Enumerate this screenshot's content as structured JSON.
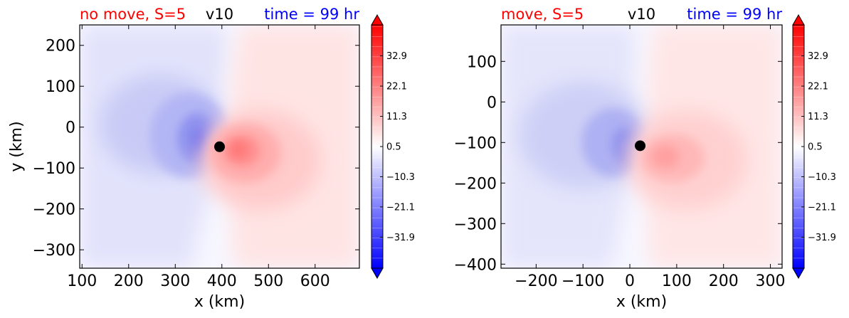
{
  "chart_data": [
    {
      "type": "heatmap",
      "title_left": "no move, S=5",
      "title_center": "v10",
      "title_right": "time = 99 hr",
      "title_colors": {
        "left": "#ff0000",
        "center": "#000000",
        "right": "#0000ff"
      },
      "xlabel": "x (km)",
      "ylabel": "y (km)",
      "xlim": [
        95,
        695
      ],
      "ylim": [
        -345,
        250
      ],
      "xticks": [
        "100",
        "200",
        "300",
        "400",
        "500",
        "600"
      ],
      "xtick_values": [
        100,
        200,
        300,
        400,
        500,
        600
      ],
      "yticks": [
        "200",
        "100",
        "0",
        "−100",
        "−200",
        "−300"
      ],
      "ytick_values": [
        200,
        100,
        0,
        -100,
        -200,
        -300
      ],
      "center_marker": {
        "x": 395,
        "y": -48
      },
      "colorbar_ticks": [
        "32.9",
        "22.1",
        "11.3",
        "0.5",
        "−10.3",
        "−21.1",
        "−31.9"
      ],
      "colorbar_values": [
        32.9,
        22.1,
        11.3,
        0.5,
        -10.3,
        -21.1,
        -31.9
      ],
      "colorbar_range": [
        -43,
        44
      ]
    },
    {
      "type": "heatmap",
      "title_left": "move, S=5",
      "title_center": "v10",
      "title_right": "time = 99 hr",
      "title_colors": {
        "left": "#ff0000",
        "center": "#000000",
        "right": "#0000ff"
      },
      "xlabel": "x (km)",
      "ylabel": "",
      "xlim": [
        -275,
        325
      ],
      "ylim": [
        -410,
        190
      ],
      "xticks": [
        "−200",
        "−100",
        "0",
        "100",
        "200",
        "300"
      ],
      "xtick_values": [
        -200,
        -100,
        0,
        100,
        200,
        300
      ],
      "yticks": [
        "100",
        "0",
        "−100",
        "−200",
        "−300",
        "−400"
      ],
      "ytick_values": [
        100,
        0,
        -100,
        -200,
        -300,
        -400
      ],
      "center_marker": {
        "x": 22,
        "y": -108
      },
      "colorbar_ticks": [
        "32.9",
        "22.1",
        "11.3",
        "0.5",
        "−10.3",
        "−21.1",
        "−31.9"
      ],
      "colorbar_values": [
        32.9,
        22.1,
        11.3,
        0.5,
        -10.3,
        -21.1,
        -31.9
      ],
      "colorbar_range": [
        -43,
        44
      ]
    }
  ]
}
